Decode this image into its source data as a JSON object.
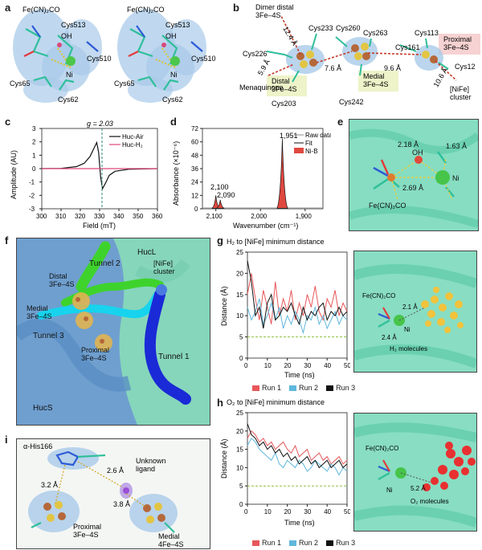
{
  "letters": {
    "a": "a",
    "b": "b",
    "c": "c",
    "d": "d",
    "e": "e",
    "f": "f",
    "g": "g",
    "h": "h",
    "i": "i"
  },
  "a": {
    "fe_label": "Fe(CN)₂CO",
    "cys513": "Cys513",
    "oh": "OH",
    "cys510": "Cys510",
    "ni": "Ni",
    "cys65": "Cys65",
    "cys62": "Cys62"
  },
  "b": {
    "dimer_distal": "Dimer distal\n3Fe–4S",
    "d_12_4": "12.4 Å",
    "cys233": "Cys233",
    "cys226": "Cys226",
    "d_5_9": "5.9 Å",
    "menaquinone": "Menaquinone",
    "cys203": "Cys203",
    "distal": "Distal\n3Fe–4S",
    "d_7_6": "7.6 Å",
    "cys260": "Cys260",
    "cys263": "Cys263",
    "cys242": "Cys242",
    "medial": "Medial\n3Fe–4S",
    "d_9_6": "9.6 Å",
    "cys161": "Cys161",
    "cys113": "Cys113",
    "proximal": "Proximal\n3Fe–4S",
    "d_10_6": "10.6 Å",
    "cys12": "Cys12",
    "nife": "[NiFe]\ncluster"
  },
  "c": {
    "g_label": "g = 2.03",
    "legend_air": "Huc-Air",
    "legend_h2": "Huc-H₂",
    "ylabel": "Amplitude (AU)",
    "xlabel": "Field (mT)"
  },
  "d": {
    "peak1": "1,951",
    "peak2": "2,100",
    "peak3": "2,090",
    "legend_raw": "Raw data",
    "legend_fit": "Fit",
    "legend_nib": "Ni-B",
    "ylabel": "Absorbance (×10⁻⁶)",
    "xlabel": "Wavenumber (cm⁻¹)"
  },
  "e": {
    "d1": "2.18 Å",
    "oh": "OH",
    "d2": "1.63 Å",
    "d3": "2.69 Å",
    "ni": "Ni",
    "fe": "Fe(CN)₂CO"
  },
  "f": {
    "tunnel2": "Tunnel 2",
    "hucl": "HucL",
    "distal": "Distal\n3Fe–4S",
    "nife": "[NiFe]\ncluster",
    "medial": "Medial\n3Fe–4S",
    "tunnel3": "Tunnel 3",
    "proximal": "Proximal\n3Fe–4S",
    "tunnel1": "Tunnel 1",
    "hucs": "HucS"
  },
  "g": {
    "title": "H₂ to [NiFe] minimum distance",
    "ylabel": "Distance (Å)",
    "xlabel": "Time (ns)",
    "run1": "Run 1",
    "run2": "Run 2",
    "run3": "Run 3",
    "fe": "Fe(CN)₂CO",
    "d1": "2.1 Å",
    "d2": "2.4 Å",
    "ni": "Ni",
    "h2": "H₂ molecules"
  },
  "h": {
    "title": "O₂ to [NiFe] minimum distance",
    "ylabel": "Distance (Å)",
    "xlabel": "Time (ns)",
    "run1": "Run 1",
    "run2": "Run 2",
    "run3": "Run 3",
    "fe": "Fe(CN)₂CO",
    "d1": "5.2 Å",
    "ni": "Ni",
    "o2": "O₂ molecules"
  },
  "i": {
    "his": "α-His166",
    "d1": "2.6 Å",
    "unknown": "Unknown\nligand",
    "d2": "3.2 Å",
    "d3": "3.8 Å",
    "proximal": "Proximal\n3Fe–4S",
    "medial": "Medial\n4Fe–4S"
  },
  "colors": {
    "run1": "#e8575a",
    "run2": "#5fb7dc",
    "run3": "#111111",
    "nib": "#e0483f",
    "density": "#9cc3e6",
    "protein": "#7fe0bf"
  },
  "chart_data": [
    {
      "type": "line",
      "panel": "c",
      "title": "",
      "xlabel": "Field (mT)",
      "ylabel": "Amplitude (AU)",
      "xlim": [
        300,
        360
      ],
      "ylim": [
        -3,
        3
      ],
      "xticks": [
        300,
        310,
        320,
        330,
        340,
        350,
        360
      ],
      "yticks": [
        -3,
        -2,
        -1,
        0,
        1,
        2,
        3
      ],
      "annotation": "g = 2.03",
      "series": [
        {
          "name": "Huc-Air",
          "x": [
            300,
            310,
            318,
            322,
            325,
            327,
            328.5,
            329.5,
            330.5,
            331.5,
            333,
            335,
            338,
            345,
            360
          ],
          "y": [
            0,
            0.02,
            0.15,
            0.4,
            0.9,
            1.5,
            1.95,
            1.2,
            -0.6,
            -1.5,
            -1.1,
            -0.5,
            -0.2,
            -0.05,
            0
          ]
        },
        {
          "name": "Huc-H₂",
          "x": [
            300,
            320,
            330,
            340,
            360
          ],
          "y": [
            0,
            0,
            0,
            0,
            0
          ]
        }
      ]
    },
    {
      "type": "area",
      "panel": "d",
      "title": "",
      "xlabel": "Wavenumber (cm⁻¹)",
      "ylabel": "Absorbance (×10⁻⁶)",
      "xlim": [
        2130,
        1860
      ],
      "ylim": [
        0,
        72
      ],
      "xticks": [
        2100,
        2000,
        1900
      ],
      "xtick_labels": [
        "2,100",
        "2,000",
        "1,900"
      ],
      "yticks": [
        0,
        12,
        24,
        36,
        48,
        60,
        72
      ],
      "peaks": [
        {
          "x": 1951,
          "y": 63
        },
        {
          "x": 2100,
          "y": 12
        },
        {
          "x": 2090,
          "y": 8
        }
      ],
      "series": [
        {
          "name": "Raw data"
        },
        {
          "name": "Fit"
        },
        {
          "name": "Ni-B"
        }
      ]
    },
    {
      "type": "line",
      "panel": "g",
      "title": "H₂ to [NiFe] minimum distance",
      "xlabel": "Time (ns)",
      "ylabel": "Distance (Å)",
      "xlim": [
        0,
        50
      ],
      "ylim": [
        0,
        25
      ],
      "xticks": [
        0,
        10,
        20,
        30,
        40,
        50
      ],
      "yticks": [
        0,
        5,
        10,
        15,
        20,
        25
      ],
      "threshold": 5,
      "series": [
        {
          "name": "Run 1",
          "x": [
            0,
            2,
            4,
            6,
            8,
            10,
            12,
            14,
            16,
            18,
            20,
            22,
            24,
            26,
            28,
            30,
            32,
            34,
            36,
            38,
            40,
            42,
            44,
            46,
            48,
            50
          ],
          "y": [
            15,
            20,
            14,
            9,
            16,
            12,
            8,
            18,
            10,
            14,
            11,
            16,
            9,
            13,
            10,
            15,
            12,
            17,
            11,
            9,
            14,
            12,
            16,
            10,
            13,
            11
          ]
        },
        {
          "name": "Run 2",
          "x": [
            0,
            2,
            4,
            6,
            8,
            10,
            12,
            14,
            16,
            18,
            20,
            22,
            24,
            26,
            28,
            30,
            32,
            34,
            36,
            38,
            40,
            42,
            44,
            46,
            48,
            50
          ],
          "y": [
            12,
            9,
            11,
            14,
            8,
            10,
            13,
            9,
            12,
            7,
            10,
            8,
            11,
            9,
            6,
            10,
            9,
            12,
            8,
            10,
            7,
            9,
            11,
            8,
            10,
            9
          ]
        },
        {
          "name": "Run 3",
          "x": [
            0,
            2,
            4,
            6,
            8,
            10,
            12,
            14,
            16,
            18,
            20,
            22,
            24,
            26,
            28,
            30,
            32,
            34,
            36,
            38,
            40,
            42,
            44,
            46,
            48,
            50
          ],
          "y": [
            23,
            18,
            10,
            12,
            7,
            13,
            15,
            9,
            10,
            12,
            11,
            13,
            10,
            8,
            12,
            9,
            11,
            10,
            12,
            13,
            9,
            11,
            10,
            12,
            10,
            11
          ]
        }
      ]
    },
    {
      "type": "line",
      "panel": "h",
      "title": "O₂ to [NiFe] minimum distance",
      "xlabel": "Time (ns)",
      "ylabel": "Distance (Å)",
      "xlim": [
        0,
        50
      ],
      "ylim": [
        0,
        25
      ],
      "xticks": [
        0,
        10,
        20,
        30,
        40,
        50
      ],
      "yticks": [
        0,
        5,
        10,
        15,
        20,
        25
      ],
      "threshold": 5,
      "series": [
        {
          "name": "Run 1",
          "x": [
            0,
            2,
            4,
            6,
            8,
            10,
            12,
            14,
            16,
            18,
            20,
            22,
            24,
            26,
            28,
            30,
            32,
            34,
            36,
            38,
            40,
            42,
            44,
            46,
            48,
            50
          ],
          "y": [
            18,
            20,
            19,
            17,
            18,
            16,
            17,
            15,
            16,
            17,
            15,
            14,
            16,
            13,
            14,
            15,
            12,
            13,
            14,
            12,
            13,
            11,
            12,
            13,
            11,
            12
          ]
        },
        {
          "name": "Run 2",
          "x": [
            0,
            2,
            4,
            6,
            8,
            10,
            12,
            14,
            16,
            18,
            20,
            22,
            24,
            26,
            28,
            30,
            32,
            34,
            36,
            38,
            40,
            42,
            44,
            46,
            48,
            50
          ],
          "y": [
            16,
            18,
            17,
            15,
            14,
            13,
            12,
            14,
            11,
            10,
            12,
            11,
            10,
            12,
            11,
            9,
            10,
            12,
            11,
            10,
            9,
            11,
            10,
            8,
            10,
            9
          ]
        },
        {
          "name": "Run 3",
          "x": [
            0,
            2,
            4,
            6,
            8,
            10,
            12,
            14,
            16,
            18,
            20,
            22,
            24,
            26,
            28,
            30,
            32,
            34,
            36,
            38,
            40,
            42,
            44,
            46,
            48,
            50
          ],
          "y": [
            22,
            19,
            18,
            16,
            17,
            15,
            16,
            14,
            15,
            13,
            14,
            12,
            13,
            11,
            12,
            13,
            11,
            12,
            10,
            11,
            12,
            10,
            11,
            12,
            10,
            11
          ]
        }
      ]
    }
  ]
}
